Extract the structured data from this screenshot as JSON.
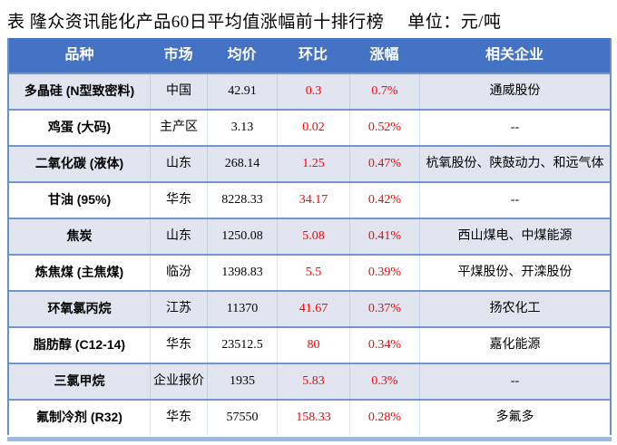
{
  "title": {
    "text": "表 隆众资讯能化产品60日平均值涨幅前十排行榜",
    "unit": "单位：元/吨"
  },
  "columns": [
    "品种",
    "市场",
    "均价",
    "环比",
    "涨幅",
    "相关企业"
  ],
  "rows": [
    {
      "variety": "多晶硅 (N型致密料)",
      "market": "中国",
      "avg": "42.91",
      "mom": "0.3",
      "pct": "0.7%",
      "companies": "通威股份"
    },
    {
      "variety": "鸡蛋 (大码)",
      "market": "主产区",
      "avg": "3.13",
      "mom": "0.02",
      "pct": "0.52%",
      "companies": "--"
    },
    {
      "variety": "二氧化碳 (液体)",
      "market": "山东",
      "avg": "268.14",
      "mom": "1.25",
      "pct": "0.47%",
      "companies": "杭氧股份、陕鼓动力、和远气体"
    },
    {
      "variety": "甘油 (95%)",
      "market": "华东",
      "avg": "8228.33",
      "mom": "34.17",
      "pct": "0.42%",
      "companies": "--"
    },
    {
      "variety": "焦炭",
      "market": "山东",
      "avg": "1250.08",
      "mom": "5.08",
      "pct": "0.41%",
      "companies": "西山煤电、中煤能源"
    },
    {
      "variety": "炼焦煤 (主焦煤)",
      "market": "临汾",
      "avg": "1398.83",
      "mom": "5.5",
      "pct": "0.39%",
      "companies": "平煤股份、开滦股份"
    },
    {
      "variety": "环氧氯丙烷",
      "market": "江苏",
      "avg": "11370",
      "mom": "41.67",
      "pct": "0.37%",
      "companies": "扬农化工"
    },
    {
      "variety": "脂肪醇 (C12-14)",
      "market": "华东",
      "avg": "23512.5",
      "mom": "80",
      "pct": "0.34%",
      "companies": "嘉化能源"
    },
    {
      "variety": "三氯甲烷",
      "market": "企业报价",
      "avg": "1935",
      "mom": "5.83",
      "pct": "0.3%",
      "companies": "--"
    },
    {
      "variety": "氟制冷剂 (R32)",
      "market": "华东",
      "avg": "57550",
      "mom": "158.33",
      "pct": "0.28%",
      "companies": "多氟多"
    }
  ],
  "colors": {
    "header_bg": "#4472C4",
    "band_row_bg": "#E1E5F0",
    "row_border": "#7494CF",
    "value_red": "#FF0000",
    "bottom_bar": "#9FB9E0"
  }
}
